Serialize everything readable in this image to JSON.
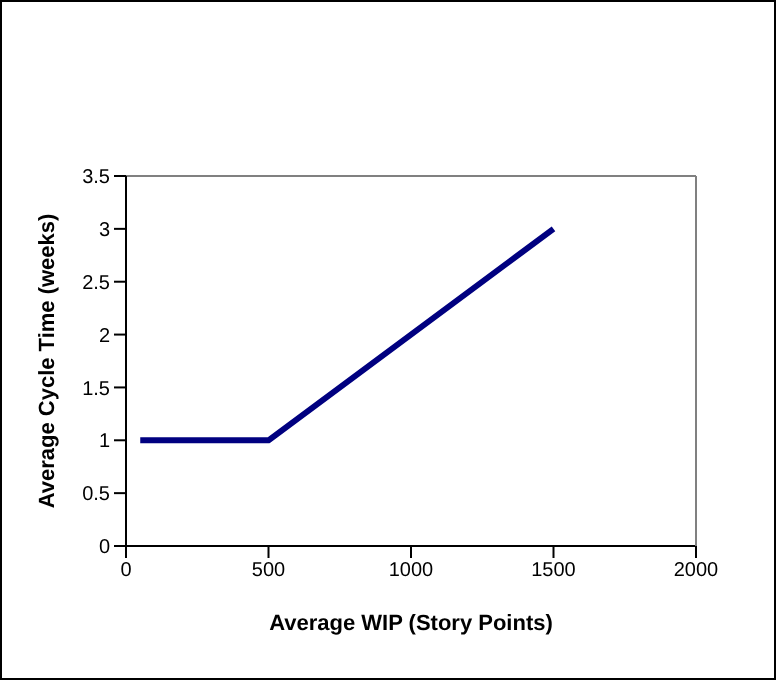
{
  "chart_data": {
    "type": "line",
    "xlabel": "Average WIP (Story Points)",
    "ylabel": "Average Cycle Time (weeks)",
    "x": [
      50,
      500,
      1500
    ],
    "series": [
      {
        "color": "#000080",
        "values": [
          1,
          1,
          3
        ]
      }
    ],
    "xlim": [
      0,
      2000
    ],
    "xticks": [
      0,
      500,
      1000,
      1500,
      2000
    ],
    "ylim": [
      0,
      3.5
    ],
    "yticks": [
      0,
      0.5,
      1,
      1.5,
      2,
      2.5,
      3,
      3.5
    ],
    "grid": false,
    "legend": false,
    "marker": "none",
    "line_style": "solid"
  }
}
